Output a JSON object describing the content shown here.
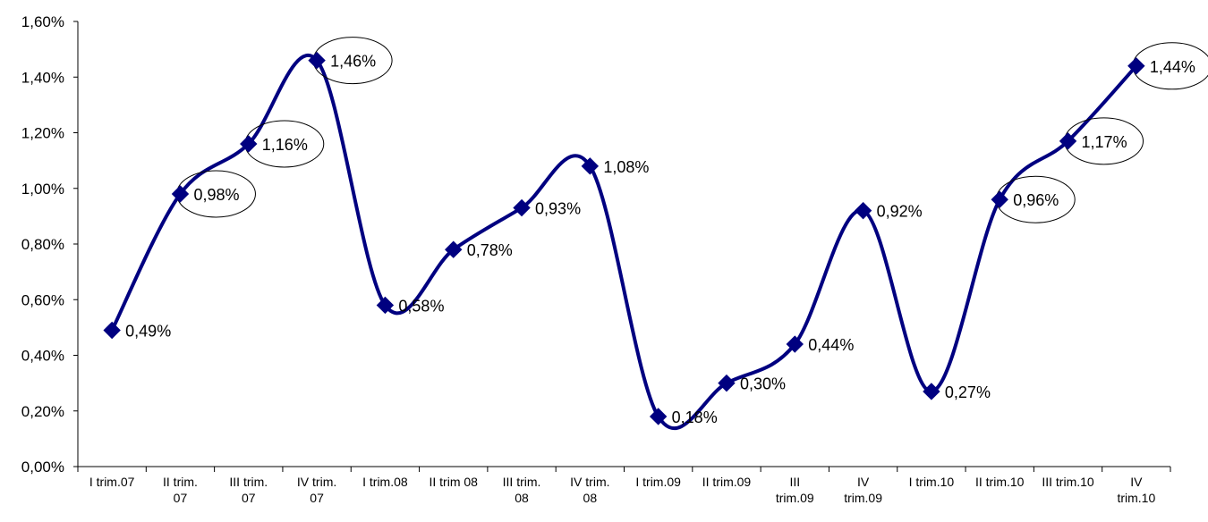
{
  "chart_data": {
    "type": "line",
    "categories": [
      "I trim.07",
      "II trim. 07",
      "III trim. 07",
      "IV trim. 07",
      "I trim.08",
      "II trim 08",
      "III trim. 08",
      "IV trim. 08",
      "I trim.09",
      "II trim.09",
      "III trim.09",
      "IV trim.09",
      "I trim.10",
      "II trim.10",
      "III trim.10",
      "IV trim.10"
    ],
    "category_lines": [
      [
        "I trim.07"
      ],
      [
        "II trim.",
        "07"
      ],
      [
        "III trim.",
        "07"
      ],
      [
        "IV trim.",
        "07"
      ],
      [
        "I trim.08"
      ],
      [
        "II trim 08"
      ],
      [
        "III trim.",
        "08"
      ],
      [
        "IV trim.",
        "08"
      ],
      [
        "I trim.09"
      ],
      [
        "II trim.09"
      ],
      [
        "III",
        "trim.09"
      ],
      [
        "IV",
        "trim.09"
      ],
      [
        "I trim.10"
      ],
      [
        "II trim.10"
      ],
      [
        "III trim.10"
      ],
      [
        "IV",
        "trim.10"
      ]
    ],
    "values": [
      0.49,
      0.98,
      1.16,
      1.46,
      0.58,
      0.78,
      0.93,
      1.08,
      0.18,
      0.3,
      0.44,
      0.92,
      0.27,
      0.96,
      1.17,
      1.44
    ],
    "data_labels": [
      "0,49%",
      "0,98%",
      "1,16%",
      "1,46%",
      "0,58%",
      "0,78%",
      "0,93%",
      "1,08%",
      "0,18%",
      "0,30%",
      "0,44%",
      "0,92%",
      "0,27%",
      "0,96%",
      "1,17%",
      "1,44%"
    ],
    "highlighted": [
      false,
      true,
      true,
      true,
      false,
      false,
      false,
      false,
      false,
      false,
      false,
      false,
      false,
      true,
      true,
      true
    ],
    "y_ticks": [
      0,
      0.2,
      0.4,
      0.6,
      0.8,
      1.0,
      1.2,
      1.4,
      1.6
    ],
    "y_tick_labels": [
      "0,00%",
      "0,20%",
      "0,40%",
      "0,60%",
      "0,80%",
      "1,00%",
      "1,20%",
      "1,40%",
      "1,60%"
    ],
    "ylim": [
      0,
      1.6
    ],
    "title": "",
    "xlabel": "",
    "ylabel": "",
    "grid": false,
    "legend": false,
    "colors": {
      "line": "#000080",
      "marker": "#000080",
      "axis": "#000000"
    }
  }
}
